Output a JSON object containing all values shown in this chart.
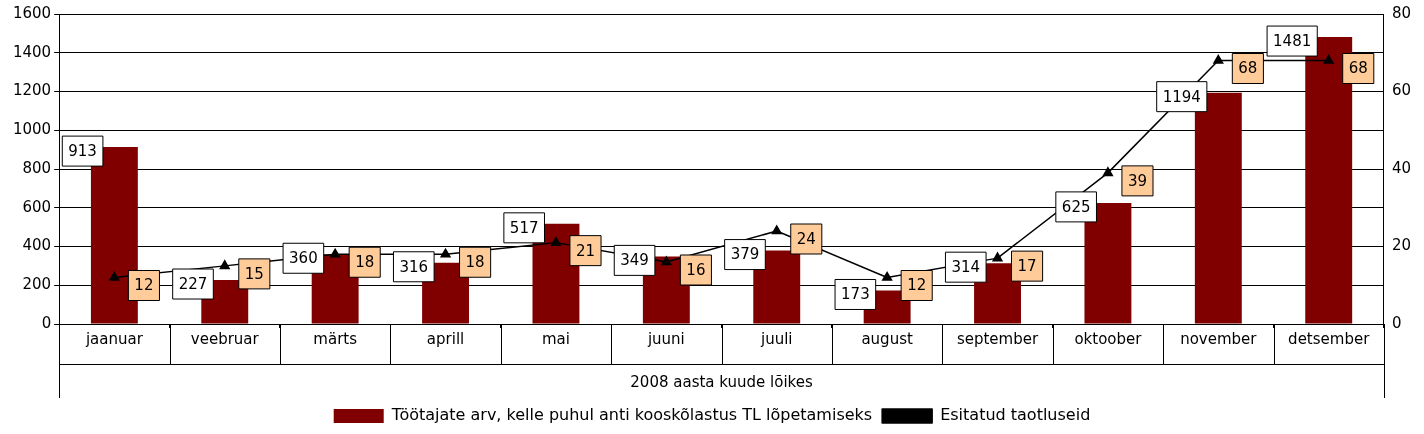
{
  "chart_data": {
    "type": "bar",
    "xlabel": "2008 aasta kuude lõikes",
    "categories": [
      "jaanuar",
      "veebruar",
      "märts",
      "aprill",
      "mai",
      "juuni",
      "juuli",
      "august",
      "september",
      "oktoober",
      "november",
      "detsember"
    ],
    "series": [
      {
        "name": "Töötajate arv, kelle puhul anti kooskõlastus TL lõpetamiseks",
        "color": "#800000",
        "values": [
          913,
          227,
          360,
          316,
          517,
          349,
          379,
          173,
          314,
          625,
          1194,
          1481
        ]
      },
      {
        "name": "Esitatud taotluseid",
        "type": "line",
        "axis": "y2",
        "color": "#000000",
        "marker": "triangle",
        "values": [
          12,
          15,
          18,
          18,
          21,
          16,
          24,
          12,
          17,
          39,
          68,
          68
        ]
      }
    ],
    "ylim": [
      0,
      1600
    ],
    "yticks": [
      0,
      200,
      400,
      600,
      800,
      1000,
      1200,
      1400,
      1600
    ],
    "y2lim": [
      0,
      80
    ],
    "y2ticks": [
      0,
      20,
      40,
      60,
      80
    ],
    "grid": "y",
    "legend": "bottom",
    "data_labels": true
  }
}
